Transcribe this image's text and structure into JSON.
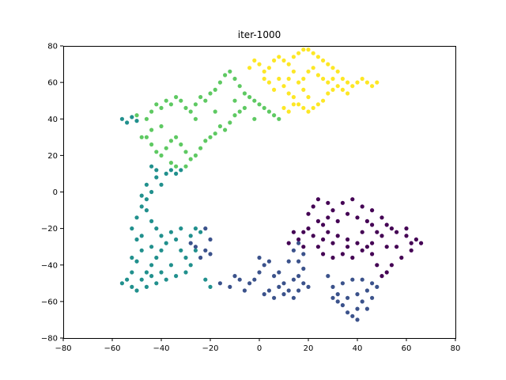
{
  "chart_data": {
    "type": "scatter",
    "title": "iter-1000",
    "xlabel": "",
    "ylabel": "",
    "xlim": [
      -80,
      80
    ],
    "ylim": [
      -80,
      80
    ],
    "x_ticks": [
      "−80",
      "−60",
      "−40",
      "−20",
      "0",
      "20",
      "40",
      "60",
      "80"
    ],
    "y_ticks": [
      "−80",
      "−60",
      "−40",
      "−20",
      "0",
      "20",
      "40",
      "60",
      "80"
    ],
    "grid": false,
    "legend": "none",
    "series": [
      {
        "color": "#440154",
        "points": [
          [
            18,
            -22
          ],
          [
            20,
            -12
          ],
          [
            22,
            -8
          ],
          [
            24,
            -4
          ],
          [
            28,
            -6
          ],
          [
            30,
            -10
          ],
          [
            34,
            -6
          ],
          [
            38,
            -4
          ],
          [
            42,
            -8
          ],
          [
            46,
            -10
          ],
          [
            50,
            -14
          ],
          [
            52,
            -18
          ],
          [
            56,
            -22
          ],
          [
            60,
            -24
          ],
          [
            64,
            -26
          ],
          [
            66,
            -28
          ],
          [
            62,
            -32
          ],
          [
            58,
            -36
          ],
          [
            54,
            -40
          ],
          [
            52,
            -44
          ],
          [
            50,
            -46
          ],
          [
            48,
            -40
          ],
          [
            46,
            -34
          ],
          [
            44,
            -30
          ],
          [
            40,
            -28
          ],
          [
            36,
            -26
          ],
          [
            32,
            -24
          ],
          [
            28,
            -22
          ],
          [
            26,
            -26
          ],
          [
            24,
            -30
          ],
          [
            26,
            -34
          ],
          [
            30,
            -36
          ],
          [
            34,
            -34
          ],
          [
            38,
            -36
          ],
          [
            42,
            -32
          ],
          [
            46,
            -28
          ],
          [
            50,
            -24
          ],
          [
            54,
            -20
          ],
          [
            52,
            -30
          ],
          [
            48,
            -22
          ],
          [
            44,
            -16
          ],
          [
            40,
            -14
          ],
          [
            36,
            -12
          ],
          [
            32,
            -16
          ],
          [
            28,
            -14
          ],
          [
            24,
            -16
          ],
          [
            20,
            -20
          ],
          [
            16,
            -26
          ],
          [
            14,
            -22
          ],
          [
            12,
            -28
          ],
          [
            18,
            -30
          ],
          [
            22,
            -24
          ],
          [
            26,
            -18
          ],
          [
            30,
            -28
          ],
          [
            36,
            -30
          ],
          [
            42,
            -22
          ],
          [
            46,
            -18
          ],
          [
            56,
            -30
          ],
          [
            60,
            -20
          ],
          [
            62,
            -28
          ]
        ]
      },
      {
        "color": "#3b528b",
        "points": [
          [
            -22,
            -20
          ],
          [
            -20,
            -26
          ],
          [
            -22,
            -32
          ],
          [
            -24,
            -36
          ],
          [
            -26,
            -30
          ],
          [
            -28,
            -28
          ],
          [
            -20,
            -34
          ],
          [
            -16,
            -50
          ],
          [
            -12,
            -52
          ],
          [
            -8,
            -48
          ],
          [
            -4,
            -50
          ],
          [
            0,
            -44
          ],
          [
            2,
            -40
          ],
          [
            0,
            -36
          ],
          [
            4,
            -38
          ],
          [
            6,
            -46
          ],
          [
            8,
            -52
          ],
          [
            10,
            -56
          ],
          [
            12,
            -54
          ],
          [
            14,
            -48
          ],
          [
            16,
            -46
          ],
          [
            18,
            -50
          ],
          [
            20,
            -52
          ],
          [
            18,
            -42
          ],
          [
            16,
            -38
          ],
          [
            14,
            -32
          ],
          [
            16,
            -28
          ],
          [
            18,
            -34
          ],
          [
            12,
            -38
          ],
          [
            8,
            -44
          ],
          [
            4,
            -54
          ],
          [
            2,
            -56
          ],
          [
            6,
            -58
          ],
          [
            10,
            -50
          ],
          [
            14,
            -58
          ],
          [
            16,
            -54
          ],
          [
            -2,
            -48
          ],
          [
            -6,
            -54
          ],
          [
            -10,
            -46
          ],
          [
            28,
            -46
          ],
          [
            30,
            -52
          ],
          [
            32,
            -56
          ],
          [
            34,
            -62
          ],
          [
            36,
            -66
          ],
          [
            38,
            -68
          ],
          [
            40,
            -64
          ],
          [
            42,
            -60
          ],
          [
            44,
            -54
          ],
          [
            46,
            -50
          ],
          [
            48,
            -52
          ],
          [
            46,
            -58
          ],
          [
            44,
            -64
          ],
          [
            40,
            -70
          ],
          [
            36,
            -58
          ],
          [
            34,
            -50
          ],
          [
            38,
            -48
          ],
          [
            42,
            -48
          ],
          [
            40,
            -56
          ],
          [
            32,
            -60
          ],
          [
            30,
            -58
          ]
        ]
      },
      {
        "color": "#21908d",
        "points": [
          [
            -56,
            40
          ],
          [
            -54,
            38
          ],
          [
            -52,
            41
          ],
          [
            -50,
            39
          ],
          [
            -44,
            14
          ],
          [
            -42,
            12
          ],
          [
            -38,
            10
          ],
          [
            -36,
            12
          ],
          [
            -34,
            10
          ],
          [
            -32,
            12
          ],
          [
            -40,
            4
          ],
          [
            -44,
            0
          ],
          [
            -46,
            -4
          ],
          [
            -48,
            -8
          ],
          [
            -50,
            -14
          ],
          [
            -52,
            -20
          ],
          [
            -50,
            -26
          ],
          [
            -48,
            -32
          ],
          [
            -50,
            -38
          ],
          [
            -52,
            -44
          ],
          [
            -54,
            -48
          ],
          [
            -56,
            -50
          ],
          [
            -52,
            -52
          ],
          [
            -50,
            -54
          ],
          [
            -48,
            -48
          ],
          [
            -46,
            -44
          ],
          [
            -44,
            -40
          ],
          [
            -42,
            -36
          ],
          [
            -40,
            -32
          ],
          [
            -38,
            -28
          ],
          [
            -40,
            -24
          ],
          [
            -42,
            -20
          ],
          [
            -44,
            -16
          ],
          [
            -46,
            -10
          ],
          [
            -48,
            -2
          ],
          [
            -46,
            4
          ],
          [
            -42,
            8
          ],
          [
            -36,
            -22
          ],
          [
            -34,
            -26
          ],
          [
            -32,
            -32
          ],
          [
            -30,
            -36
          ],
          [
            -28,
            -40
          ],
          [
            -30,
            -44
          ],
          [
            -34,
            -46
          ],
          [
            -38,
            -48
          ],
          [
            -42,
            -50
          ],
          [
            -46,
            -52
          ],
          [
            -28,
            -24
          ],
          [
            -26,
            -20
          ],
          [
            -24,
            -22
          ],
          [
            -22,
            -48
          ],
          [
            -20,
            -52
          ],
          [
            -44,
            -30
          ],
          [
            -48,
            -24
          ],
          [
            -52,
            -36
          ],
          [
            -36,
            -40
          ],
          [
            -40,
            -44
          ],
          [
            -32,
            -20
          ],
          [
            -26,
            -32
          ],
          [
            -44,
            -46
          ]
        ]
      },
      {
        "color": "#5ec962",
        "points": [
          [
            -50,
            42
          ],
          [
            -46,
            40
          ],
          [
            -44,
            44
          ],
          [
            -42,
            48
          ],
          [
            -40,
            46
          ],
          [
            -38,
            50
          ],
          [
            -36,
            48
          ],
          [
            -34,
            52
          ],
          [
            -32,
            50
          ],
          [
            -30,
            46
          ],
          [
            -28,
            44
          ],
          [
            -26,
            48
          ],
          [
            -24,
            52
          ],
          [
            -22,
            50
          ],
          [
            -20,
            54
          ],
          [
            -18,
            56
          ],
          [
            -16,
            60
          ],
          [
            -14,
            64
          ],
          [
            -12,
            66
          ],
          [
            -10,
            62
          ],
          [
            -8,
            58
          ],
          [
            -6,
            54
          ],
          [
            -4,
            52
          ],
          [
            -2,
            50
          ],
          [
            0,
            48
          ],
          [
            2,
            46
          ],
          [
            4,
            44
          ],
          [
            6,
            42
          ],
          [
            8,
            40
          ],
          [
            -46,
            30
          ],
          [
            -44,
            26
          ],
          [
            -42,
            22
          ],
          [
            -40,
            20
          ],
          [
            -38,
            24
          ],
          [
            -36,
            28
          ],
          [
            -34,
            30
          ],
          [
            -32,
            26
          ],
          [
            -30,
            22
          ],
          [
            -28,
            18
          ],
          [
            -26,
            20
          ],
          [
            -24,
            24
          ],
          [
            -22,
            28
          ],
          [
            -20,
            30
          ],
          [
            -18,
            32
          ],
          [
            -16,
            36
          ],
          [
            -14,
            34
          ],
          [
            -12,
            38
          ],
          [
            -10,
            42
          ],
          [
            -8,
            44
          ],
          [
            -6,
            46
          ],
          [
            -36,
            16
          ],
          [
            -34,
            14
          ],
          [
            -30,
            14
          ],
          [
            -40,
            36
          ],
          [
            -44,
            34
          ],
          [
            -48,
            30
          ],
          [
            -26,
            40
          ],
          [
            -18,
            44
          ],
          [
            -10,
            50
          ],
          [
            -2,
            40
          ]
        ]
      },
      {
        "color": "#fde725",
        "points": [
          [
            -4,
            68
          ],
          [
            -2,
            72
          ],
          [
            0,
            70
          ],
          [
            2,
            66
          ],
          [
            4,
            68
          ],
          [
            6,
            72
          ],
          [
            8,
            74
          ],
          [
            10,
            72
          ],
          [
            12,
            70
          ],
          [
            14,
            74
          ],
          [
            16,
            76
          ],
          [
            18,
            78
          ],
          [
            20,
            78
          ],
          [
            22,
            76
          ],
          [
            24,
            74
          ],
          [
            26,
            72
          ],
          [
            28,
            70
          ],
          [
            30,
            68
          ],
          [
            32,
            66
          ],
          [
            34,
            62
          ],
          [
            36,
            60
          ],
          [
            38,
            58
          ],
          [
            40,
            60
          ],
          [
            42,
            62
          ],
          [
            44,
            60
          ],
          [
            46,
            58
          ],
          [
            48,
            60
          ],
          [
            8,
            62
          ],
          [
            10,
            58
          ],
          [
            12,
            54
          ],
          [
            14,
            52
          ],
          [
            16,
            48
          ],
          [
            18,
            46
          ],
          [
            20,
            44
          ],
          [
            22,
            46
          ],
          [
            24,
            48
          ],
          [
            26,
            50
          ],
          [
            28,
            54
          ],
          [
            30,
            56
          ],
          [
            32,
            58
          ],
          [
            34,
            56
          ],
          [
            36,
            54
          ],
          [
            10,
            46
          ],
          [
            12,
            44
          ],
          [
            14,
            48
          ],
          [
            6,
            56
          ],
          [
            4,
            60
          ],
          [
            2,
            62
          ],
          [
            16,
            60
          ],
          [
            18,
            62
          ],
          [
            20,
            66
          ],
          [
            22,
            68
          ],
          [
            24,
            64
          ],
          [
            26,
            62
          ],
          [
            28,
            60
          ],
          [
            30,
            62
          ],
          [
            14,
            66
          ],
          [
            12,
            62
          ],
          [
            18,
            56
          ],
          [
            20,
            52
          ]
        ]
      }
    ]
  }
}
